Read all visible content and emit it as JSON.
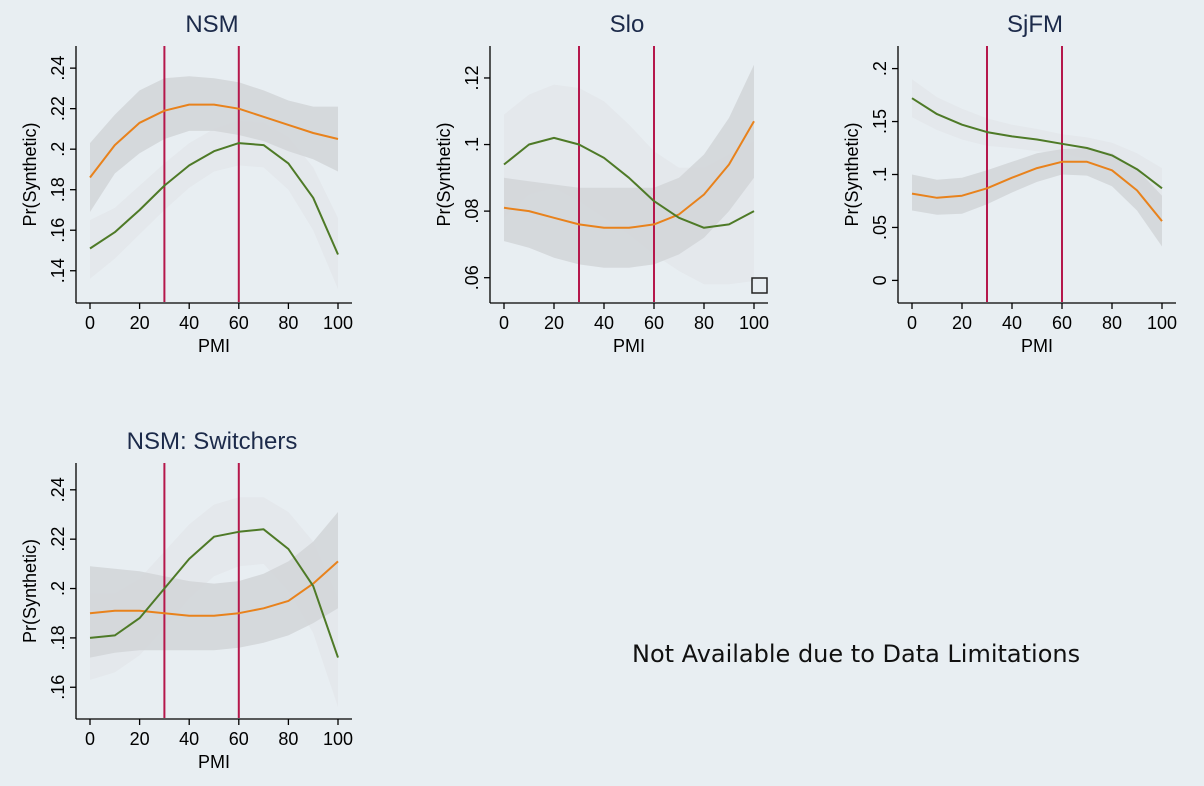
{
  "note": "Not Available due to Data Limitations",
  "colors": {
    "background": "#e8eef2",
    "orange_line": "#e8821c",
    "green_line": "#4e7a27",
    "orange_band": "#d3d6d9",
    "green_band": "#e3e6e9",
    "ref_line": "#b5174b",
    "title": "#1c2a4a"
  },
  "chart_data": [
    {
      "type": "line",
      "title": "NSM",
      "xlabel": "PMI",
      "ylabel": "Pr(Synthetic)",
      "xlim": [
        0,
        100
      ],
      "ylim": [
        0.13,
        0.245
      ],
      "xticks": [
        0,
        20,
        40,
        60,
        80,
        100
      ],
      "xtick_labels": [
        "0",
        "20",
        "40",
        "60",
        "80",
        "100"
      ],
      "yticks": [
        0.14,
        0.16,
        0.18,
        0.2,
        0.22,
        0.24
      ],
      "ytick_labels": [
        ".14",
        ".16",
        ".18",
        ".2",
        ".22",
        ".24"
      ],
      "ref_lines_x": [
        30,
        60
      ],
      "x": [
        0,
        10,
        20,
        30,
        40,
        50,
        60,
        70,
        80,
        90,
        100
      ],
      "series": [
        {
          "color": "orange",
          "values": [
            0.186,
            0.202,
            0.213,
            0.219,
            0.222,
            0.222,
            0.22,
            0.216,
            0.212,
            0.208,
            0.205
          ],
          "upper": [
            0.203,
            0.217,
            0.229,
            0.235,
            0.236,
            0.235,
            0.233,
            0.229,
            0.224,
            0.221,
            0.221
          ],
          "lower": [
            0.169,
            0.188,
            0.198,
            0.205,
            0.209,
            0.209,
            0.207,
            0.204,
            0.199,
            0.195,
            0.189
          ]
        },
        {
          "color": "green",
          "values": [
            0.151,
            0.159,
            0.17,
            0.182,
            0.192,
            0.199,
            0.203,
            0.202,
            0.193,
            0.176,
            0.148
          ],
          "upper": [
            0.165,
            0.171,
            0.182,
            0.193,
            0.203,
            0.21,
            0.214,
            0.213,
            0.206,
            0.191,
            0.166
          ],
          "lower": [
            0.136,
            0.146,
            0.158,
            0.17,
            0.181,
            0.189,
            0.192,
            0.191,
            0.18,
            0.16,
            0.131
          ]
        }
      ]
    },
    {
      "type": "line",
      "title": "Slo",
      "xlabel": "PMI",
      "ylabel": "Pr(Synthetic)",
      "xlim": [
        0,
        100
      ],
      "ylim": [
        0.056,
        0.126
      ],
      "xticks": [
        0,
        20,
        40,
        60,
        80,
        100
      ],
      "xtick_labels": [
        "0",
        "20",
        "40",
        "60",
        "80",
        "100"
      ],
      "yticks": [
        0.06,
        0.08,
        0.1,
        0.12
      ],
      "ytick_labels": [
        ".06",
        ".08",
        ".1",
        ".12"
      ],
      "ref_lines_x": [
        30,
        60
      ],
      "x": [
        0,
        10,
        20,
        30,
        40,
        50,
        60,
        70,
        80,
        90,
        100
      ],
      "series": [
        {
          "color": "orange",
          "values": [
            0.081,
            0.08,
            0.078,
            0.076,
            0.075,
            0.075,
            0.076,
            0.079,
            0.085,
            0.094,
            0.107
          ],
          "upper": [
            0.09,
            0.089,
            0.088,
            0.087,
            0.087,
            0.087,
            0.087,
            0.09,
            0.097,
            0.108,
            0.124
          ],
          "lower": [
            0.071,
            0.069,
            0.066,
            0.064,
            0.063,
            0.063,
            0.064,
            0.067,
            0.072,
            0.08,
            0.09
          ]
        },
        {
          "color": "green",
          "values": [
            0.094,
            0.1,
            0.102,
            0.1,
            0.096,
            0.09,
            0.083,
            0.078,
            0.075,
            0.076,
            0.08
          ],
          "upper": [
            0.109,
            0.115,
            0.118,
            0.117,
            0.113,
            0.106,
            0.098,
            0.093,
            0.093,
            0.097,
            0.101
          ],
          "lower": [
            0.078,
            0.085,
            0.087,
            0.083,
            0.078,
            0.073,
            0.067,
            0.062,
            0.058,
            0.058,
            0.059
          ]
        }
      ]
    },
    {
      "type": "line",
      "title": "SjFM",
      "xlabel": "PMI",
      "ylabel": "Pr(Synthetic)",
      "xlim": [
        0,
        100
      ],
      "ylim": [
        -0.01,
        0.21
      ],
      "xticks": [
        0,
        20,
        40,
        60,
        80,
        100
      ],
      "xtick_labels": [
        "0",
        "20",
        "40",
        "60",
        "80",
        "100"
      ],
      "yticks": [
        0,
        0.05,
        0.1,
        0.15,
        0.2
      ],
      "ytick_labels": [
        "0",
        ".05",
        ".1",
        ".15",
        ".2"
      ],
      "ref_lines_x": [
        30,
        60
      ],
      "x": [
        0,
        10,
        20,
        30,
        40,
        50,
        60,
        70,
        80,
        90,
        100
      ],
      "series": [
        {
          "color": "orange",
          "values": [
            0.082,
            0.078,
            0.08,
            0.087,
            0.097,
            0.106,
            0.112,
            0.112,
            0.104,
            0.085,
            0.056
          ],
          "upper": [
            0.1,
            0.095,
            0.097,
            0.104,
            0.112,
            0.12,
            0.124,
            0.125,
            0.12,
            0.105,
            0.08
          ],
          "lower": [
            0.066,
            0.062,
            0.063,
            0.072,
            0.083,
            0.093,
            0.1,
            0.099,
            0.089,
            0.066,
            0.032
          ]
        },
        {
          "color": "green",
          "values": [
            0.172,
            0.157,
            0.147,
            0.14,
            0.136,
            0.133,
            0.129,
            0.125,
            0.118,
            0.105,
            0.087
          ],
          "upper": [
            0.19,
            0.173,
            0.162,
            0.153,
            0.147,
            0.143,
            0.138,
            0.135,
            0.13,
            0.12,
            0.106
          ],
          "lower": [
            0.154,
            0.142,
            0.133,
            0.127,
            0.125,
            0.122,
            0.12,
            0.115,
            0.106,
            0.091,
            0.068
          ]
        }
      ]
    },
    {
      "type": "line",
      "title": "NSM: Switchers",
      "xlabel": "PMI",
      "ylabel": "Pr(Synthetic)",
      "xlim": [
        0,
        100
      ],
      "ylim": [
        0.152,
        0.246
      ],
      "xticks": [
        0,
        20,
        40,
        60,
        80,
        100
      ],
      "xtick_labels": [
        "0",
        "20",
        "40",
        "60",
        "80",
        "100"
      ],
      "yticks": [
        0.16,
        0.18,
        0.2,
        0.22,
        0.24
      ],
      "ytick_labels": [
        ".16",
        ".18",
        ".2",
        ".22",
        ".24"
      ],
      "ref_lines_x": [
        30,
        60
      ],
      "x": [
        0,
        10,
        20,
        30,
        40,
        50,
        60,
        70,
        80,
        90,
        100
      ],
      "series": [
        {
          "color": "orange",
          "values": [
            0.19,
            0.191,
            0.191,
            0.19,
            0.189,
            0.189,
            0.19,
            0.192,
            0.195,
            0.202,
            0.211
          ],
          "upper": [
            0.209,
            0.208,
            0.207,
            0.205,
            0.203,
            0.202,
            0.203,
            0.206,
            0.211,
            0.219,
            0.231
          ],
          "lower": [
            0.172,
            0.174,
            0.175,
            0.175,
            0.175,
            0.175,
            0.176,
            0.178,
            0.181,
            0.186,
            0.192
          ]
        },
        {
          "color": "green",
          "values": [
            0.18,
            0.181,
            0.188,
            0.2,
            0.212,
            0.221,
            0.223,
            0.224,
            0.216,
            0.201,
            0.172
          ],
          "upper": [
            0.198,
            0.198,
            0.204,
            0.215,
            0.226,
            0.234,
            0.237,
            0.237,
            0.231,
            0.219,
            0.196
          ],
          "lower": [
            0.163,
            0.166,
            0.173,
            0.184,
            0.196,
            0.205,
            0.209,
            0.21,
            0.199,
            0.182,
            0.152
          ]
        }
      ]
    }
  ]
}
